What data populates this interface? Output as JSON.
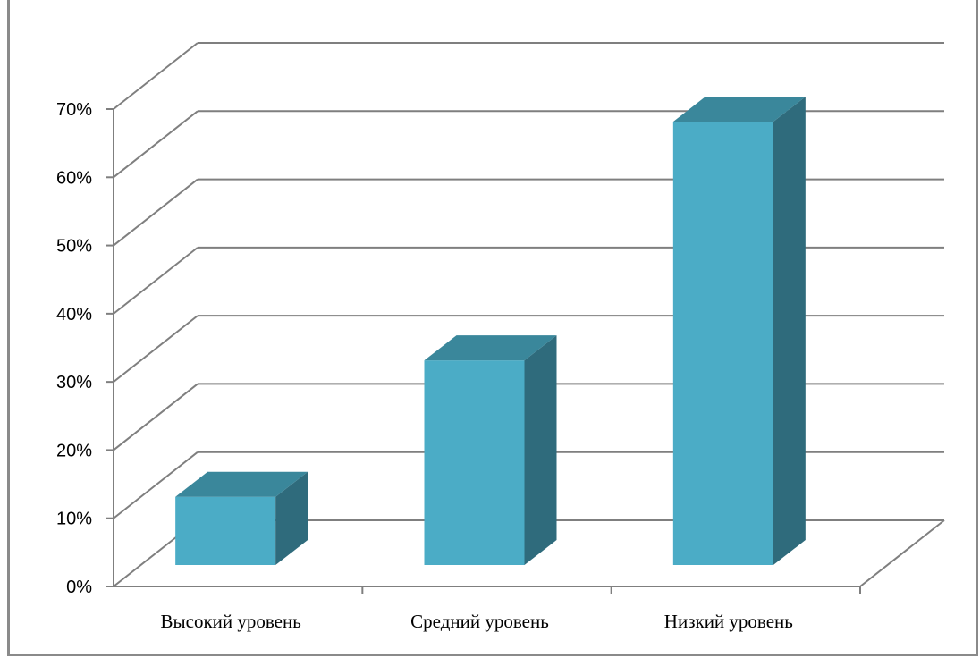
{
  "chart_data": {
    "type": "bar",
    "style": "3d-column",
    "categories": [
      "Высокий уровень",
      "Средний уровень",
      "Низкий уровень"
    ],
    "values": [
      10,
      30,
      65
    ],
    "ylim": [
      0,
      70
    ],
    "yticks": [
      "0%",
      "10%",
      "20%",
      "30%",
      "40%",
      "50%",
      "60%",
      "70%"
    ],
    "grid": true,
    "colors": {
      "front": "#4bacc6",
      "top": "#3a879b",
      "side": "#2f6b7c",
      "grid": "#7f7f7f",
      "axis": "#7f7f7f"
    }
  }
}
